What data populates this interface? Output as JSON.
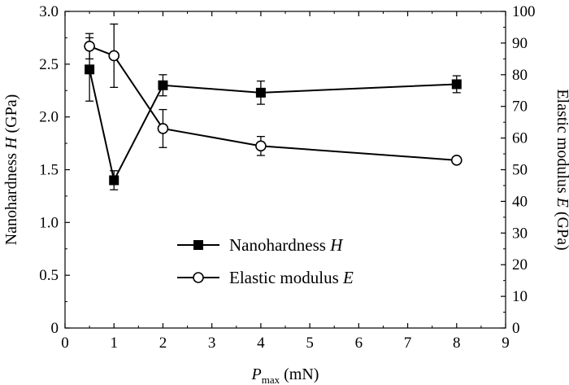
{
  "chart_data": {
    "type": "line",
    "title": "",
    "x": [
      0.5,
      1,
      2,
      4,
      8
    ],
    "xlabel": {
      "main": "P",
      "sub": "max",
      "unit": " (mN)"
    },
    "xlim": [
      0,
      9
    ],
    "xticks": [
      0,
      1,
      2,
      3,
      4,
      5,
      6,
      7,
      8,
      9
    ],
    "left_axis": {
      "label_pre": "Nanohardness ",
      "label_var": "H",
      "label_post": " (GPa)",
      "ylim": [
        0,
        3.0
      ],
      "ticks": [
        "0",
        "0.5",
        "1.0",
        "1.5",
        "2.0",
        "2.5",
        "3.0"
      ],
      "tick_values": [
        0,
        0.5,
        1.0,
        1.5,
        2.0,
        2.5,
        3.0
      ]
    },
    "right_axis": {
      "label_pre": "Elastic modulus ",
      "label_var": "E",
      "label_post": " (GPa)",
      "ylim": [
        0,
        100
      ],
      "ticks": [
        0,
        10,
        20,
        30,
        40,
        50,
        60,
        70,
        80,
        90,
        100
      ]
    },
    "series": [
      {
        "name": "Nanohardness H",
        "legend_text": "Nanohardness ",
        "legend_var": "H",
        "axis": "left",
        "marker": "filled-square",
        "values": [
          2.45,
          1.4,
          2.3,
          2.23,
          2.31
        ],
        "err": [
          0.3,
          0.09,
          0.1,
          0.11,
          0.08
        ]
      },
      {
        "name": "Elastic modulus E",
        "legend_text": "Elastic modulus ",
        "legend_var": "E",
        "axis": "right",
        "marker": "open-circle",
        "values": [
          89,
          86,
          63,
          57.5,
          53
        ],
        "err": [
          4,
          10,
          6,
          3,
          0
        ]
      }
    ],
    "legend_position": "center-left",
    "grid": false,
    "colors": {
      "line": "#000000",
      "background": "#ffffff"
    }
  }
}
